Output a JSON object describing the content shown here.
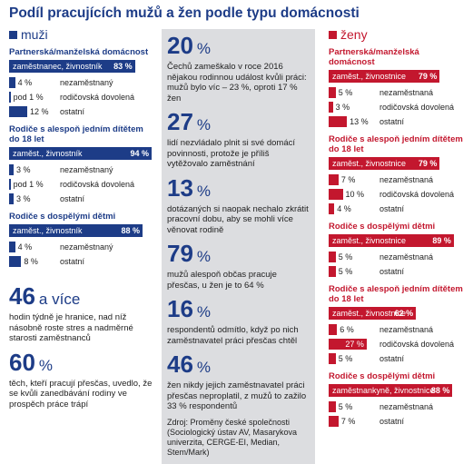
{
  "title": "Podíl pracujících mužů a žen podle typu domácnosti",
  "men": {
    "label": "muži",
    "groups": [
      {
        "title": "Partnerská/manželská domácnost",
        "rows": [
          {
            "label": "zaměstnanec, živnostník",
            "value": 83,
            "value_label": "83 %"
          },
          {
            "label": "nezaměstnaný",
            "value": 4,
            "value_label": "4 %"
          },
          {
            "label": "rodičovská dovolená",
            "value": 1,
            "value_label": "pod 1 %"
          },
          {
            "label": "ostatní",
            "value": 12,
            "value_label": "12 %"
          }
        ]
      },
      {
        "title": "Rodiče s alespoň jedním dítětem do 18 let",
        "rows": [
          {
            "label": "zaměst., živnostník",
            "value": 94,
            "value_label": "94 %"
          },
          {
            "label": "nezaměstnaný",
            "value": 3,
            "value_label": "3 %"
          },
          {
            "label": "rodičovská dovolená",
            "value": 1,
            "value_label": "pod 1 %"
          },
          {
            "label": "ostatní",
            "value": 3,
            "value_label": "3 %"
          }
        ]
      },
      {
        "title": "Rodiče s dospělými dětmi",
        "rows": [
          {
            "label": "zaměst., živnostník",
            "value": 88,
            "value_label": "88 %"
          },
          {
            "label": "nezaměstnaný",
            "value": 4,
            "value_label": "4 %"
          },
          {
            "label": "ostatní",
            "value": 8,
            "value_label": "8 %"
          }
        ]
      }
    ]
  },
  "women": {
    "label": "ženy",
    "groups": [
      {
        "title": "Partnerská/manželská domácnost",
        "rows": [
          {
            "label": "zaměst., živnostnice",
            "value": 79,
            "value_label": "79 %"
          },
          {
            "label": "nezaměstnaná",
            "value": 5,
            "value_label": "5 %"
          },
          {
            "label": "rodičovská dovolená",
            "value": 3,
            "value_label": "3 %"
          },
          {
            "label": "ostatní",
            "value": 13,
            "value_label": "13 %"
          }
        ]
      },
      {
        "title": "Rodiče s alespoň jedním dítětem do 18 let",
        "rows": [
          {
            "label": "zaměst., živnostnice",
            "value": 79,
            "value_label": "79 %"
          },
          {
            "label": "nezaměstnaná",
            "value": 7,
            "value_label": "7 %"
          },
          {
            "label": "rodičovská dovolená",
            "value": 10,
            "value_label": "10 %"
          },
          {
            "label": "ostatní",
            "value": 4,
            "value_label": "4 %"
          }
        ]
      },
      {
        "title": "Rodiče s dospělými dětmi",
        "rows": [
          {
            "label": "zaměst., živnostnice",
            "value": 89,
            "value_label": "89 %"
          },
          {
            "label": "nezaměstnaná",
            "value": 5,
            "value_label": "5 %"
          },
          {
            "label": "ostatní",
            "value": 5,
            "value_label": "5 %"
          }
        ]
      },
      {
        "title": "Rodiče s alespoň jedním dítětem do 18 let",
        "rows": [
          {
            "label": "zaměst., živnostnice",
            "value": 62,
            "value_label": "62 %"
          },
          {
            "label": "nezaměstnaná",
            "value": 6,
            "value_label": "6 %"
          },
          {
            "label": "rodičovská dovolená",
            "value": 27,
            "value_label": "27 %"
          },
          {
            "label": "ostatní",
            "value": 5,
            "value_label": "5 %"
          }
        ]
      },
      {
        "title": "Rodiče s dospělými dětmi",
        "rows": [
          {
            "label": "zaměstnankyně, živnostnice",
            "value": 88,
            "value_label": "88 %"
          },
          {
            "label": "nezaměstnaná",
            "value": 5,
            "value_label": "5 %"
          },
          {
            "label": "ostatní",
            "value": 7,
            "value_label": "7 %"
          }
        ]
      }
    ]
  },
  "left_stats": [
    {
      "number": 46,
      "unit": "a více",
      "text": "hodin týdně je hranice, nad níž násobně roste stres a nadměrné starosti zaměstnanců"
    },
    {
      "number": 60,
      "unit": "%",
      "text": "těch, kteří pracují přesčas, uvedlo, že se kvůli zanedbávání rodiny ve prospěch práce trápí"
    }
  ],
  "center_stats": [
    {
      "number": 20,
      "unit": "%",
      "text": "Čechů zameškalo v roce 2016 nějakou rodinnou událost kvůli práci: mužů bylo víc – 23 %, oproti 17 % žen"
    },
    {
      "number": 27,
      "unit": "%",
      "text": "lidí nezvládalo plnit si své domácí povinnosti, protože je příliš vytěžovalo zaměstnání"
    },
    {
      "number": 13,
      "unit": "%",
      "text": "dotázaných si naopak nechalo zkrátit pracovní dobu, aby se mohli více věnovat rodině"
    },
    {
      "number": 79,
      "unit": "%",
      "text": "mužů alespoň občas pracuje přesčas, u žen je to 64 %"
    },
    {
      "number": 16,
      "unit": "%",
      "text": "respondentů odmítlo, když po nich zaměstnavatel práci přesčas chtěl"
    },
    {
      "number": 46,
      "unit": "%",
      "text": "žen nikdy jejich zaměstnavatel práci přesčas neproplatil, z mužů to zažilo 33 % respondentů"
    }
  ],
  "source": "Zdroj: Proměny české společnosti (Sociologický ústav AV, Masarykova univerzita, CERGE-EI, Median, Stem/Mark)"
}
